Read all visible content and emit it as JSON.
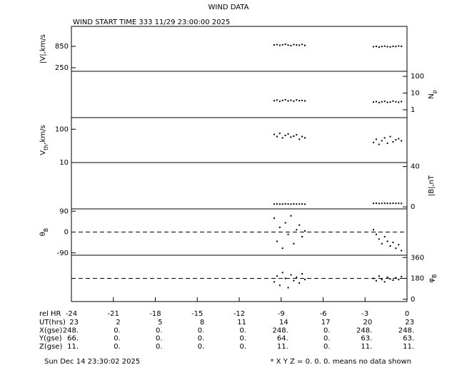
{
  "title": "WIND DATA",
  "subtitle": "WIND START TIME 333 11/29 23:00:00 2025",
  "footer_left": "Sun Dec 14 23:30:02 2025",
  "footer_right": "* X Y Z = 0. 0. 0. means no data shown",
  "x_axis": {
    "label": "rel HR",
    "xlim": [
      -24,
      0
    ],
    "xticks": [
      -24,
      -21,
      -18,
      -15,
      -12,
      -9,
      -6,
      -3,
      0
    ]
  },
  "ephemeris": {
    "rows": [
      {
        "label": "UT(hrs)",
        "values": [
          "23",
          "2",
          "5",
          "8",
          "11",
          "14",
          "17",
          "20",
          "23"
        ]
      },
      {
        "label": "X(gse)",
        "values": [
          "248.",
          "0.",
          "0.",
          "0.",
          "0.",
          "248.",
          "0.",
          "248.",
          "248."
        ]
      },
      {
        "label": "Y(gse)",
        "values": [
          "66.",
          "0.",
          "0.",
          "0.",
          "0.",
          "64.",
          "0.",
          "63.",
          "63."
        ]
      },
      {
        "label": "Z(gse)",
        "values": [
          "11.",
          "0.",
          "0.",
          "0.",
          "0.",
          "11.",
          "0.",
          "11.",
          "11."
        ]
      }
    ]
  },
  "chart_data": [
    {
      "type": "scatter",
      "y_label": [
        {
          "text": "|V|,km/s"
        }
      ],
      "axis_side": "left",
      "log": false,
      "ylim": [
        150,
        1410
      ],
      "yticks": [
        850,
        250
      ],
      "color": "#000000",
      "x": [
        -9.5,
        -9.3,
        -9.1,
        -8.9,
        -8.7,
        -8.5,
        -8.3,
        -8.1,
        -7.9,
        -7.7,
        -7.5,
        -7.3,
        -2.4,
        -2.2,
        -2.0,
        -1.8,
        -1.6,
        -1.4,
        -1.2,
        -1.0,
        -0.8,
        -0.6,
        -0.4
      ],
      "values": [
        890,
        900,
        880,
        895,
        910,
        885,
        870,
        900,
        890,
        880,
        905,
        875,
        840,
        850,
        830,
        845,
        855,
        840,
        835,
        850,
        845,
        860,
        850
      ]
    },
    {
      "type": "scatter",
      "y_label": [
        {
          "text": "N"
        },
        {
          "text": "p",
          "sub": true
        }
      ],
      "axis_side": "right",
      "log": true,
      "ylim": [
        0.34,
        200
      ],
      "yticks": [
        100,
        10,
        1
      ],
      "color": "#000000",
      "x": [
        -9.5,
        -9.3,
        -9.1,
        -8.9,
        -8.7,
        -8.5,
        -8.3,
        -8.1,
        -7.9,
        -7.7,
        -7.5,
        -7.3,
        -2.4,
        -2.2,
        -2.0,
        -1.8,
        -1.6,
        -1.4,
        -1.2,
        -1.0,
        -0.8,
        -0.6,
        -0.4
      ],
      "values": [
        3.5,
        3.8,
        3.2,
        3.6,
        4.0,
        3.4,
        3.7,
        3.3,
        3.9,
        3.5,
        3.6,
        3.4,
        2.9,
        3.1,
        2.7,
        3.0,
        3.2,
        2.8,
        2.9,
        3.3,
        3.0,
        2.8,
        3.1
      ]
    },
    {
      "type": "scatter",
      "y_label": [
        {
          "text": "V"
        },
        {
          "text": "th",
          "sub": true
        },
        {
          "text": ",km/s"
        }
      ],
      "axis_side": "left",
      "log": true,
      "ylim": [
        10,
        223
      ],
      "yticks": [
        100,
        10
      ],
      "color": "#000000",
      "x": [
        -9.5,
        -9.3,
        -9.1,
        -8.9,
        -8.7,
        -8.5,
        -8.3,
        -8.1,
        -7.9,
        -7.7,
        -7.5,
        -7.3,
        -2.4,
        -2.2,
        -2.0,
        -1.8,
        -1.6,
        -1.4,
        -1.2,
        -1.0,
        -0.8,
        -0.6,
        -0.4
      ],
      "values": [
        70,
        60,
        75,
        55,
        65,
        72,
        58,
        62,
        68,
        50,
        60,
        55,
        40,
        50,
        35,
        45,
        55,
        38,
        60,
        42,
        48,
        52,
        45
      ]
    },
    {
      "type": "scatter",
      "y_label": [
        {
          "text": "|B|,nT"
        }
      ],
      "axis_side": "right",
      "log": false,
      "ylim": [
        -2,
        44
      ],
      "yticks": [
        40,
        0
      ],
      "color": "#000000",
      "x": [
        -9.5,
        -9.3,
        -9.1,
        -8.9,
        -8.7,
        -8.5,
        -8.3,
        -8.1,
        -7.9,
        -7.7,
        -7.5,
        -7.3,
        -2.4,
        -2.2,
        -2.0,
        -1.8,
        -1.6,
        -1.4,
        -1.2,
        -1.0,
        -0.8,
        -0.6,
        -0.4
      ],
      "values": [
        2.8,
        2.9,
        2.7,
        2.8,
        3.0,
        2.8,
        2.7,
        2.9,
        2.8,
        2.8,
        2.9,
        2.7,
        3.5,
        3.6,
        3.4,
        3.5,
        3.6,
        3.5,
        3.4,
        3.6,
        3.5,
        3.5,
        3.4
      ]
    },
    {
      "type": "scatter",
      "y_label": [
        {
          "text": "θ"
        },
        {
          "text": "B",
          "sub": true
        }
      ],
      "axis_side": "left",
      "log": false,
      "ylim": [
        -100,
        100
      ],
      "yticks": [
        90,
        0,
        -90
      ],
      "ref_line": 0,
      "color": "#000000",
      "x": [
        -9.5,
        -9.3,
        -9.1,
        -8.9,
        -8.7,
        -8.5,
        -8.3,
        -8.1,
        -7.9,
        -7.7,
        -7.5,
        -7.3,
        -2.4,
        -2.2,
        -2.0,
        -1.8,
        -1.6,
        -1.4,
        -1.2,
        -1.0,
        -0.8,
        -0.6,
        -0.4
      ],
      "values": [
        60,
        -40,
        20,
        -70,
        40,
        -10,
        70,
        -50,
        10,
        30,
        -20,
        5,
        10,
        -10,
        -30,
        -50,
        -20,
        -40,
        -60,
        -45,
        -70,
        -55,
        -80
      ]
    },
    {
      "type": "scatter",
      "y_label": [
        {
          "text": "φ"
        },
        {
          "text": "B",
          "sub": true
        }
      ],
      "axis_side": "right",
      "log": false,
      "ylim": [
        -20,
        380
      ],
      "yticks": [
        360,
        180,
        0
      ],
      "ref_line": 180,
      "color": "#000000",
      "x": [
        -9.5,
        -9.3,
        -9.1,
        -8.9,
        -8.7,
        -8.5,
        -8.3,
        -8.1,
        -7.9,
        -7.7,
        -7.5,
        -7.3,
        -2.4,
        -2.2,
        -2.0,
        -1.8,
        -1.6,
        -1.4,
        -1.2,
        -1.0,
        -0.8,
        -0.6,
        -0.4
      ],
      "values": [
        150,
        200,
        120,
        230,
        180,
        100,
        210,
        160,
        190,
        140,
        220,
        170,
        180,
        160,
        200,
        170,
        150,
        190,
        175,
        165,
        185,
        170,
        195
      ]
    }
  ]
}
